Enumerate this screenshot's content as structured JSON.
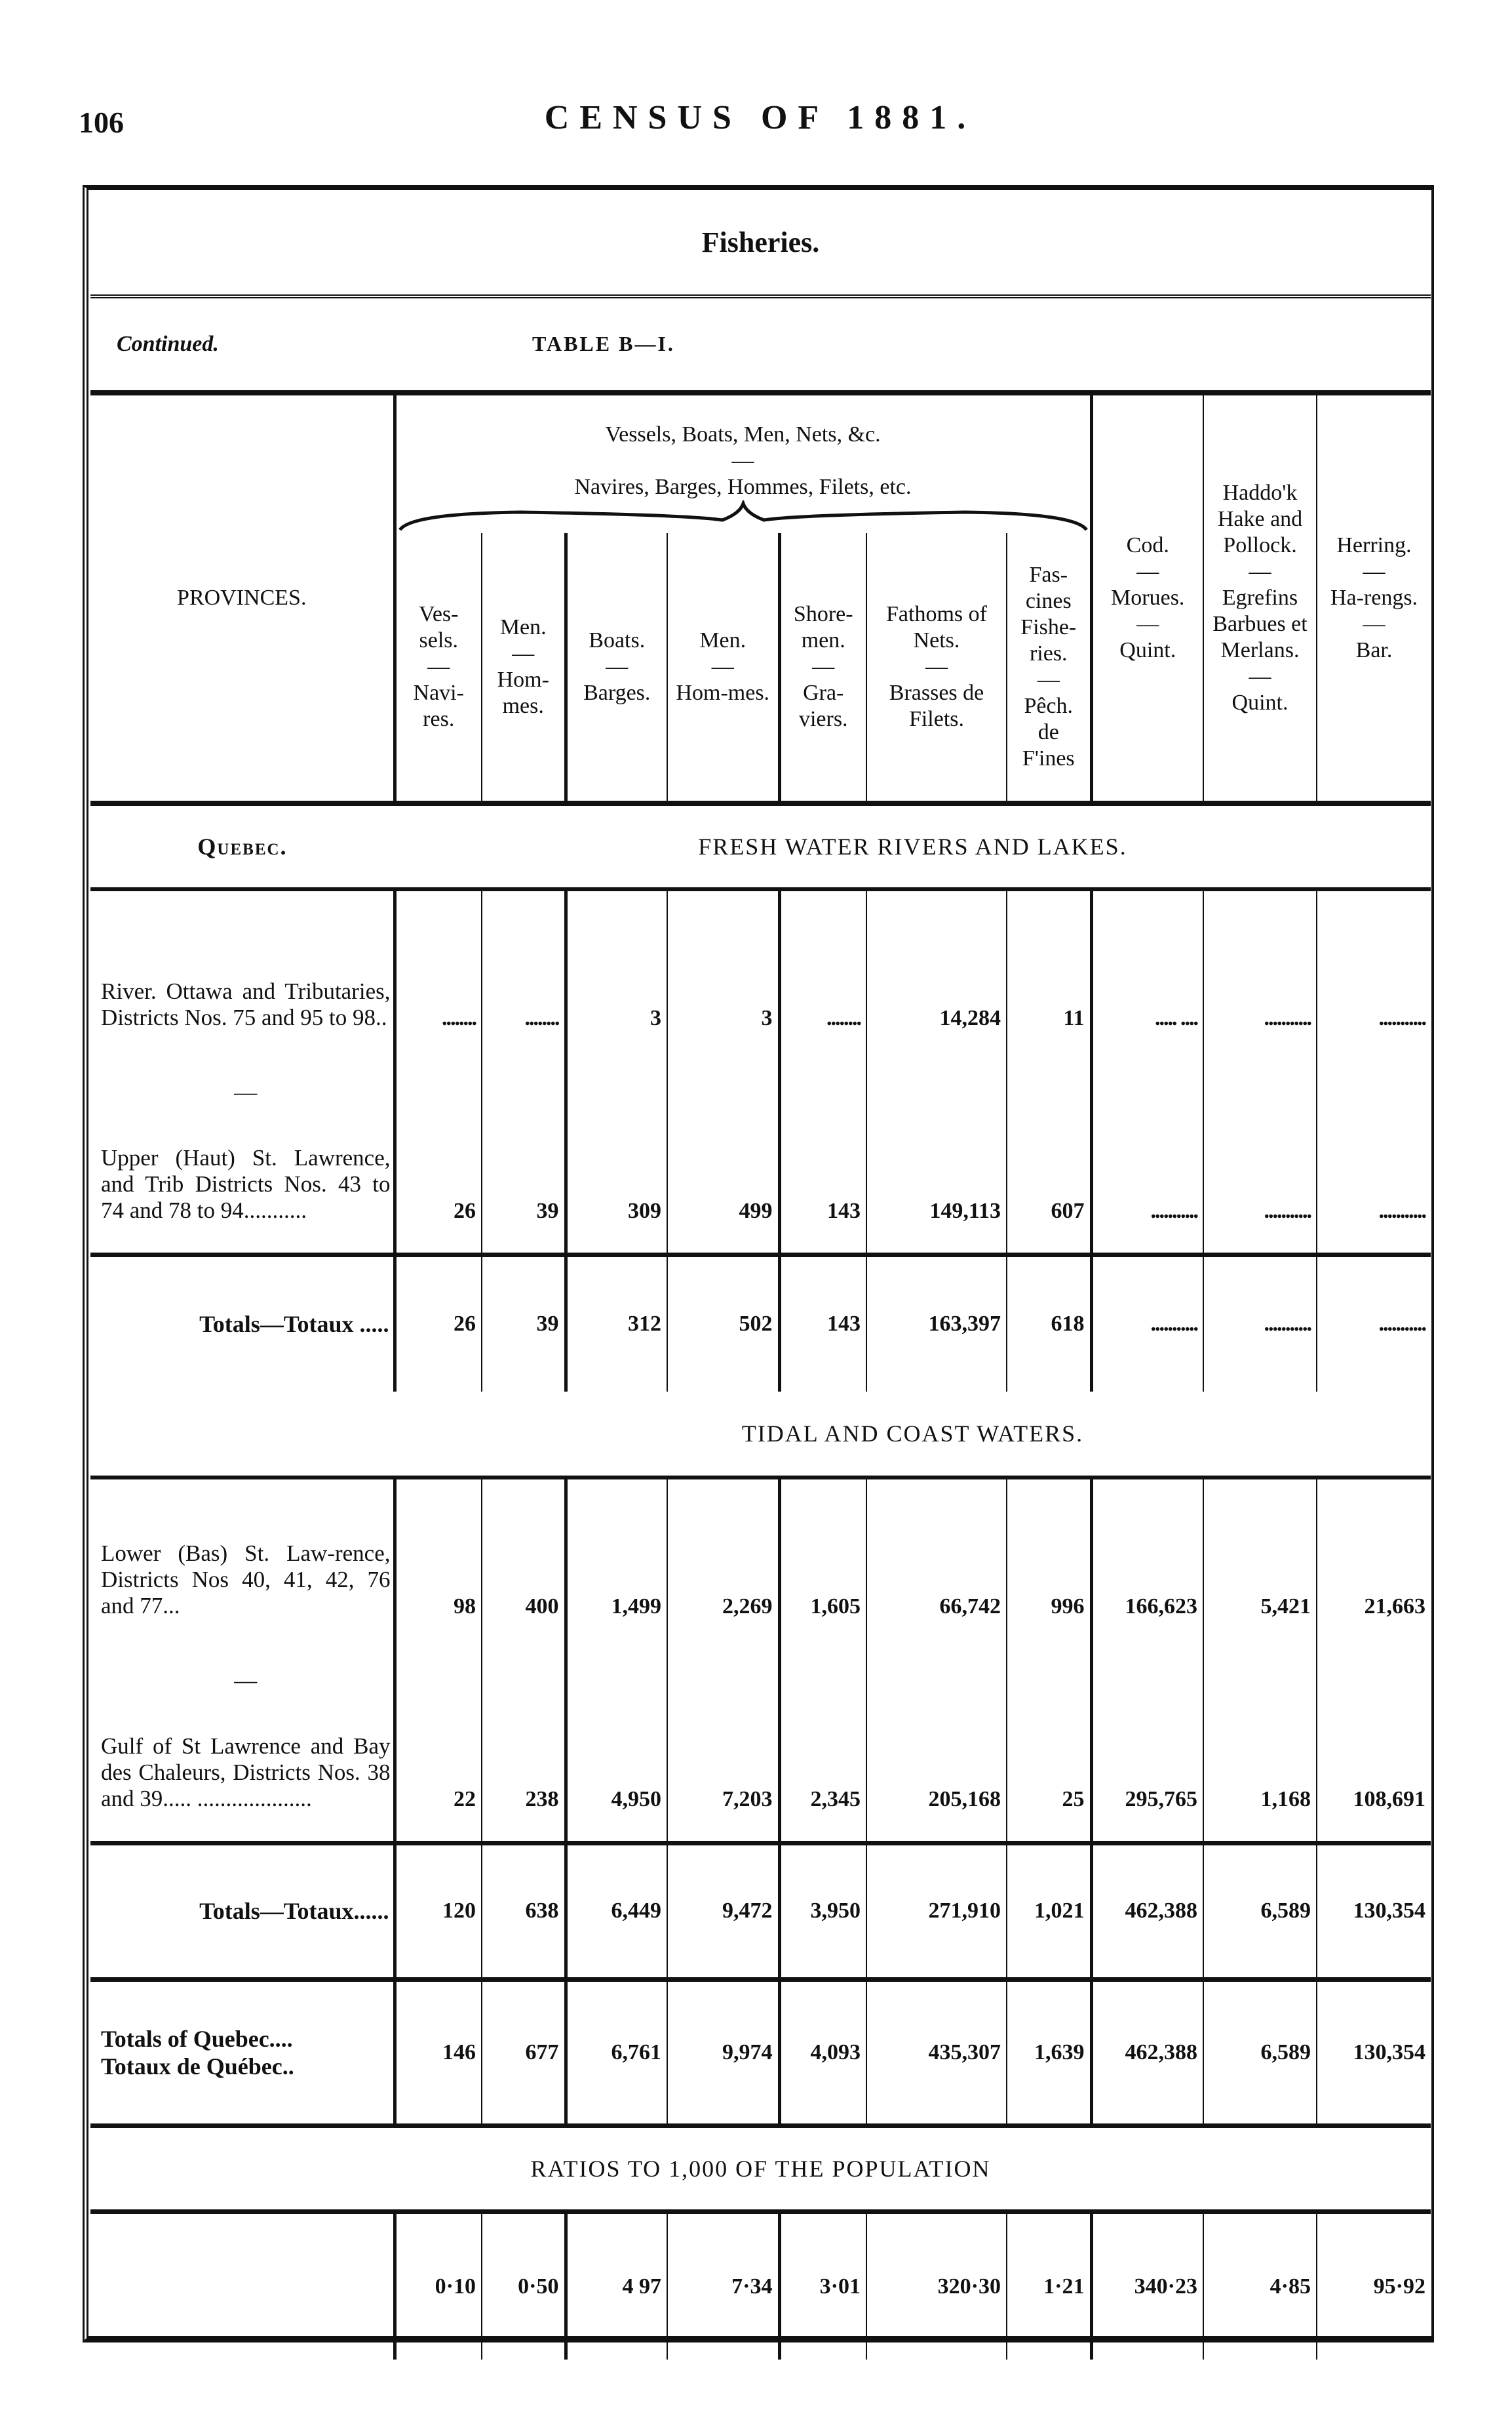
{
  "page": {
    "number": "106",
    "title": "CENSUS OF 1881."
  },
  "table": {
    "heading": "Fisheries.",
    "continued": "Continued.",
    "label": "TABLE B—I.",
    "provinces_header": "PROVINCES.",
    "group_en": "Vessels, Boats, Men, Nets, &c.",
    "group_fr": "Navires, Barges, Hommes, Filets, etc.",
    "dash": "—",
    "subcolumns": [
      {
        "en": "Ves-sels.",
        "fr": "Navi-res."
      },
      {
        "en": "Men.",
        "fr": "Hom-mes."
      },
      {
        "en": "Boats.",
        "fr": "Barges."
      },
      {
        "en": "Men.",
        "fr": "Hom-mes."
      },
      {
        "en": "Shore-men.",
        "fr": "Gra-viers."
      },
      {
        "en": "Fathoms of Nets.",
        "fr": "Brasses de Filets."
      },
      {
        "en": "Fas-cines Fishe-ries.",
        "fr": "Pêch. de F'ines"
      }
    ],
    "fish_columns": [
      {
        "en": "Cod.",
        "fr": "Morues.",
        "unit": "Quint."
      },
      {
        "en": "Haddo'k Hake and Pollock.",
        "fr": "Egrefins Barbues et Merlans.",
        "unit": "Quint."
      },
      {
        "en": "Herring.",
        "fr": "Ha-rengs.",
        "unit": "Bar."
      }
    ]
  },
  "province": "Quebec.",
  "sections": [
    {
      "title": "FRESH WATER RIVERS AND LAKES.",
      "rows": [
        {
          "label": "River. Ottawa and Tributaries, Districts Nos. 75 and 95 to 98..",
          "values": [
            "........",
            "........",
            "3",
            "3",
            "........",
            "14,284",
            "11",
            "..... ....",
            "...........",
            "..........."
          ]
        },
        {
          "label": "Upper (Haut) St. Lawrence, and Trib Districts Nos. 43 to 74 and 78 to 94...........",
          "values": [
            "26",
            "39",
            "309",
            "499",
            "143",
            "149,113",
            "607",
            "...........",
            "...........",
            "..........."
          ]
        }
      ],
      "total": {
        "label": "Totals—Totaux .....",
        "values": [
          "26",
          "39",
          "312",
          "502",
          "143",
          "163,397",
          "618",
          "...........",
          "...........",
          "..........."
        ]
      }
    },
    {
      "title": "TIDAL AND COAST WATERS.",
      "rows": [
        {
          "label": "Lower (Bas) St. Law-rence, Districts Nos 40, 41, 42, 76 and 77...",
          "values": [
            "98",
            "400",
            "1,499",
            "2,269",
            "1,605",
            "66,742",
            "996",
            "166,623",
            "5,421",
            "21,663"
          ]
        },
        {
          "label": "Gulf of St Lawrence and Bay des Chaleurs, Districts Nos. 38 and 39..... ....................",
          "values": [
            "22",
            "238",
            "4,950",
            "7,203",
            "2,345",
            "205,168",
            "25",
            "295,765",
            "1,168",
            "108,691"
          ]
        }
      ],
      "total": {
        "label": "Totals—Totaux......",
        "values": [
          "120",
          "638",
          "6,449",
          "9,472",
          "3,950",
          "271,910",
          "1,021",
          "462,388",
          "6,589",
          "130,354"
        ]
      }
    }
  ],
  "grand_total": {
    "label_en": "Totals of Quebec....",
    "label_fr": "Totaux de Québec..",
    "values": [
      "146",
      "677",
      "6,761",
      "9,974",
      "4,093",
      "435,307",
      "1,639",
      "462,388",
      "6,589",
      "130,354"
    ]
  },
  "ratios": {
    "title": "RATIOS TO 1,000 OF THE POPULATION",
    "values": [
      "0·10",
      "0·50",
      "4 97",
      "7·34",
      "3·01",
      "320·30",
      "1·21",
      "340·23",
      "4·85",
      "95·92"
    ]
  }
}
